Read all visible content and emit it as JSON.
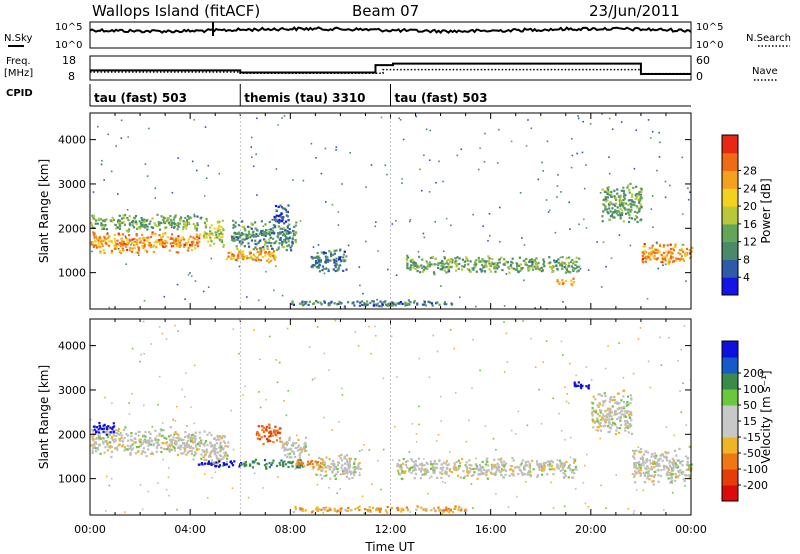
{
  "header": {
    "site": "Wallops Island (fitACF)",
    "beam": "Beam 07",
    "date": "23/Jun/2011"
  },
  "noise_panel": {
    "left_label": "N.Sky",
    "right_label": "N.Search",
    "left_ticks": [
      "10^5",
      "10^0"
    ],
    "right_ticks": [
      "10^5",
      "10^0"
    ]
  },
  "freq_panel": {
    "left_label_1": "Freq.",
    "left_label_2": "[MHz]",
    "right_label": "Nave",
    "left_ticks": [
      "18",
      "8"
    ],
    "right_ticks": [
      "60",
      "0"
    ],
    "freq_steps": [
      {
        "start_h": 0,
        "end_h": 6,
        "freq_mhz": 12.0
      },
      {
        "start_h": 6,
        "end_h": 11.4,
        "freq_mhz": 11.1
      },
      {
        "start_h": 11.4,
        "end_h": 12.1,
        "freq_mhz": 14.2
      },
      {
        "start_h": 12.1,
        "end_h": 22,
        "freq_mhz": 14.8
      },
      {
        "start_h": 22,
        "end_h": 24,
        "freq_mhz": 10.5
      }
    ],
    "nave_steps": [
      {
        "start_h": 0,
        "end_h": 6,
        "nave": 20
      },
      {
        "start_h": 6,
        "end_h": 11.7,
        "nave": 17
      },
      {
        "start_h": 11.7,
        "end_h": 22,
        "nave": 26
      },
      {
        "start_h": 22,
        "end_h": 24,
        "nave": 16
      }
    ]
  },
  "cpid": {
    "label": "CPID",
    "segments": [
      {
        "start_h": 0,
        "end_h": 6,
        "name": "tau (fast) 503"
      },
      {
        "start_h": 6,
        "end_h": 12,
        "name": "themis (tau) 3310"
      },
      {
        "start_h": 12,
        "end_h": 24,
        "name": "tau (fast) 503"
      }
    ]
  },
  "colors": {
    "power_scale": [
      "#1414e6",
      "#2f5aa8",
      "#4a8a6a",
      "#63a55a",
      "#b8c83a",
      "#f2d21e",
      "#f5a01e",
      "#f06c14",
      "#e62814"
    ],
    "velocity_scale": [
      "#1010dc",
      "#145ac8",
      "#3a8a4a",
      "#6ac83c",
      "#c8c8c8",
      "#c8c8c8",
      "#f0b428",
      "#f07814",
      "#e63c0a",
      "#dc0a0a"
    ],
    "ground_scatter": "#bebebe"
  },
  "chart_data": [
    {
      "type": "heatmap",
      "panel": "power",
      "xlabel": "Time UT",
      "ylabel": "Slant Range [km]",
      "xlim": [
        0,
        24
      ],
      "ylim": [
        180,
        4600
      ],
      "x_ticks": [
        "00:00",
        "04:00",
        "08:00",
        "12:00",
        "16:00",
        "20:00",
        "00:00"
      ],
      "y_ticks": [
        "1000",
        "2000",
        "3000",
        "4000"
      ],
      "colorbar": {
        "label": "Power [dB]",
        "range": [
          0,
          32
        ],
        "ticks": [
          "4",
          "8",
          "12",
          "16",
          "20",
          "24",
          "28"
        ]
      },
      "regions": [
        {
          "t0": 0.0,
          "t1": 4.4,
          "r_center": 1700,
          "r_half": 260,
          "power_db": 24
        },
        {
          "t0": 0.0,
          "t1": 4.4,
          "r_center": 2150,
          "r_half": 200,
          "power_db": 12
        },
        {
          "t0": 4.5,
          "t1": 5.3,
          "r_center": 1900,
          "r_half": 350,
          "power_db": 16
        },
        {
          "t0": 5.3,
          "t1": 7.4,
          "r_center": 1400,
          "r_half": 200,
          "power_db": 22
        },
        {
          "t0": 5.6,
          "t1": 8.2,
          "r_center": 1850,
          "r_half": 380,
          "power_db": 10
        },
        {
          "t0": 7.3,
          "t1": 7.9,
          "r_center": 2300,
          "r_half": 300,
          "power_db": 6
        },
        {
          "t0": 8.8,
          "t1": 10.2,
          "r_center": 1300,
          "r_half": 300,
          "power_db": 8
        },
        {
          "t0": 8.0,
          "t1": 14.5,
          "r_center": 330,
          "r_half": 80,
          "power_db": 8
        },
        {
          "t0": 12.6,
          "t1": 19.5,
          "r_center": 1200,
          "r_half": 220,
          "power_db": 12
        },
        {
          "t0": 18.6,
          "t1": 19.3,
          "r_center": 820,
          "r_half": 90,
          "power_db": 22
        },
        {
          "t0": 20.4,
          "t1": 22.0,
          "r_center": 2600,
          "r_half": 500,
          "power_db": 12
        },
        {
          "t0": 22.0,
          "t1": 24.0,
          "r_center": 1450,
          "r_half": 280,
          "power_db": 24
        }
      ]
    },
    {
      "type": "heatmap",
      "panel": "velocity",
      "xlabel": "Time UT",
      "ylabel": "Slant Range [km]",
      "xlim": [
        0,
        24
      ],
      "ylim": [
        180,
        4600
      ],
      "x_ticks": [
        "00:00",
        "04:00",
        "08:00",
        "12:00",
        "16:00",
        "20:00",
        "00:00"
      ],
      "y_ticks": [
        "1000",
        "2000",
        "3000",
        "4000"
      ],
      "colorbar": {
        "label": "Velocity [m s⁻¹]",
        "range": [
          -250,
          250
        ],
        "ticks": [
          "200",
          "100",
          "50",
          "15",
          "-15",
          "-50",
          "-100",
          "-200"
        ]
      },
      "regions": [
        {
          "t0": 0.0,
          "t1": 4.4,
          "r_center": 1850,
          "r_half": 350,
          "velocity": 0
        },
        {
          "t0": 0.1,
          "t1": 1.0,
          "r_center": 2150,
          "r_half": 150,
          "velocity": 200
        },
        {
          "t0": 4.4,
          "t1": 5.5,
          "r_center": 1700,
          "r_half": 450,
          "velocity": 0
        },
        {
          "t0": 4.3,
          "t1": 6.0,
          "r_center": 1350,
          "r_half": 90,
          "velocity": 200
        },
        {
          "t0": 6.0,
          "t1": 8.5,
          "r_center": 1350,
          "r_half": 110,
          "velocity": 60
        },
        {
          "t0": 6.6,
          "t1": 7.6,
          "r_center": 2050,
          "r_half": 280,
          "velocity": -70
        },
        {
          "t0": 7.6,
          "t1": 8.6,
          "r_center": 1700,
          "r_half": 300,
          "velocity": 0
        },
        {
          "t0": 8.2,
          "t1": 9.3,
          "r_center": 1350,
          "r_half": 120,
          "velocity": -40
        },
        {
          "t0": 9.0,
          "t1": 10.8,
          "r_center": 1300,
          "r_half": 300,
          "velocity": 0
        },
        {
          "t0": 8.0,
          "t1": 15.0,
          "r_center": 330,
          "r_half": 80,
          "velocity": -30
        },
        {
          "t0": 12.2,
          "t1": 19.4,
          "r_center": 1250,
          "r_half": 250,
          "velocity": 0
        },
        {
          "t0": 19.3,
          "t1": 20.0,
          "r_center": 3100,
          "r_half": 100,
          "velocity": 200
        },
        {
          "t0": 20.0,
          "t1": 21.6,
          "r_center": 2500,
          "r_half": 550,
          "velocity": 0
        },
        {
          "t0": 21.6,
          "t1": 24.0,
          "r_center": 1300,
          "r_half": 450,
          "velocity": 0
        }
      ]
    }
  ]
}
